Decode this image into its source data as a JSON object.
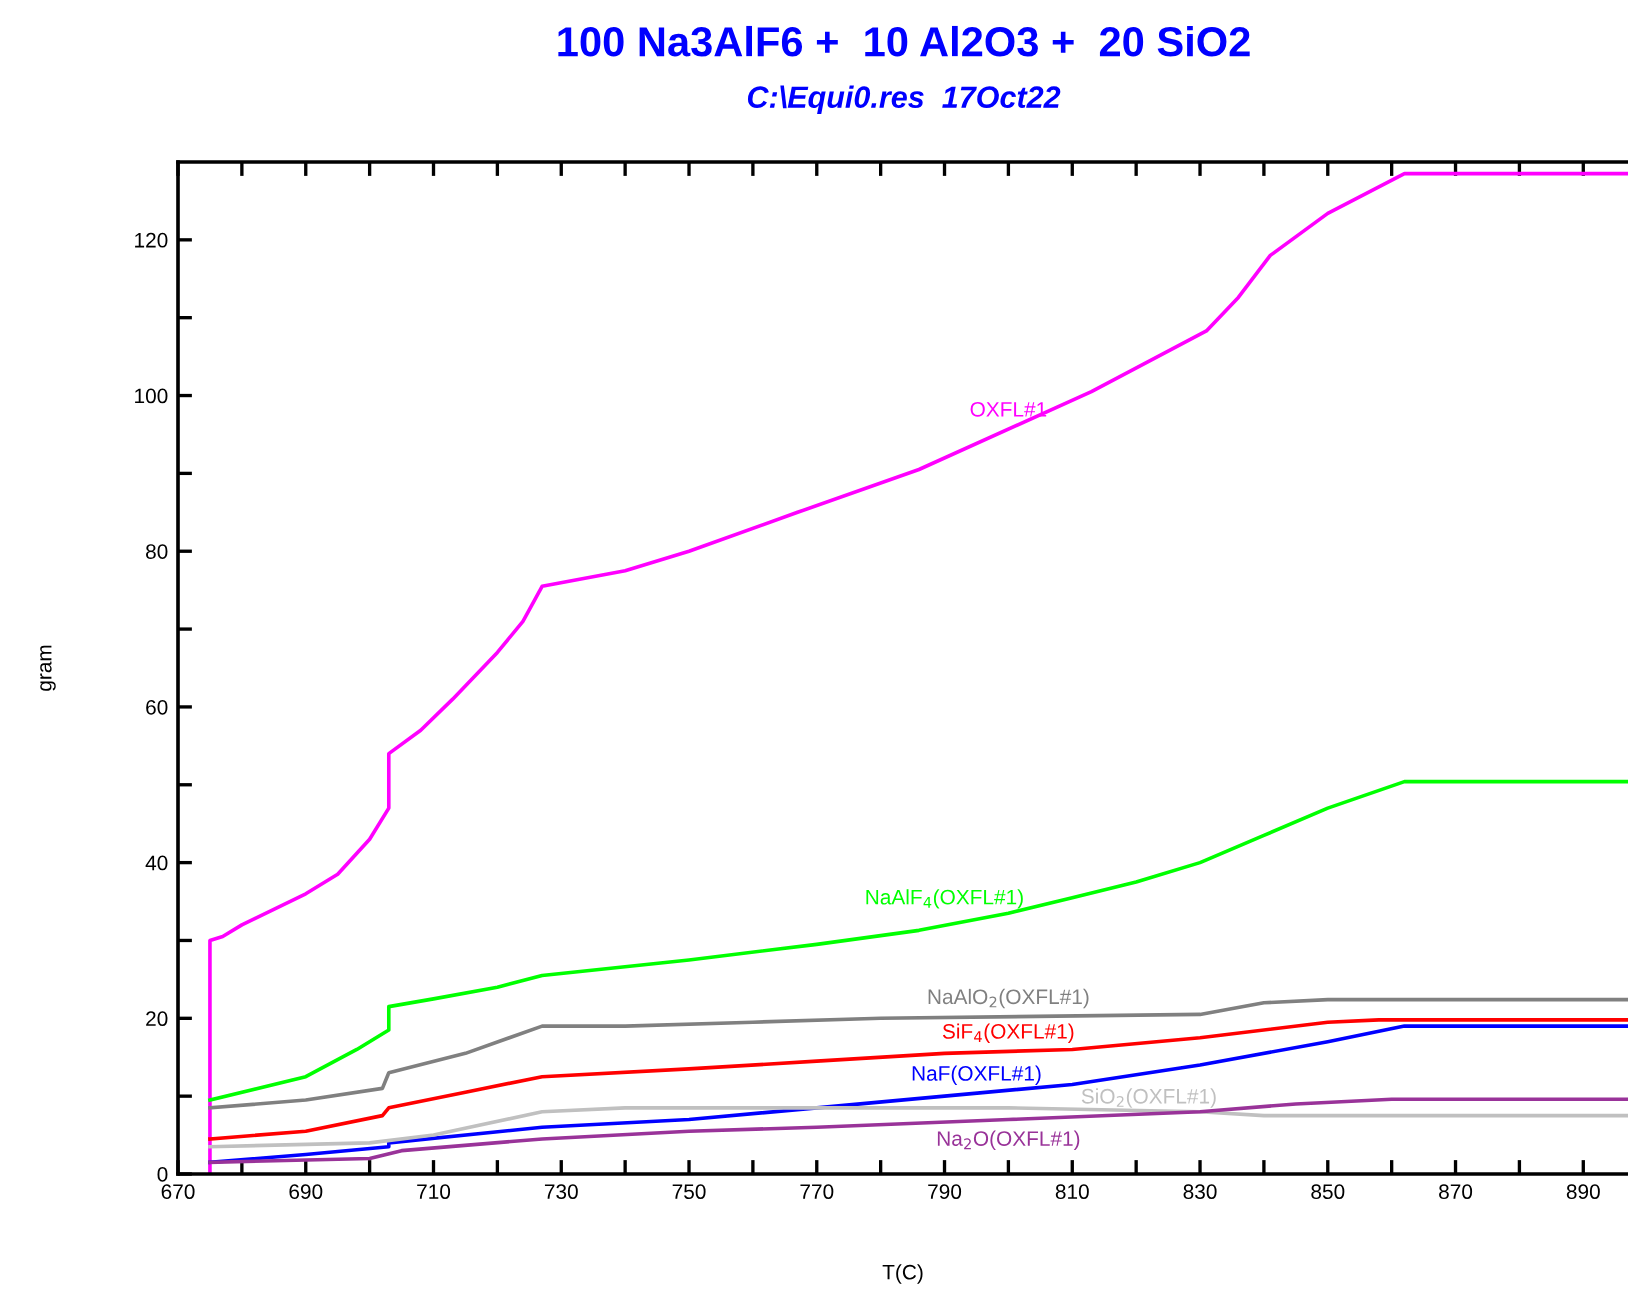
{
  "chart_data": {
    "type": "line",
    "title": "100 Na3AlF6 +  10 Al2O3 +  20 SiO2",
    "subtitle": "C:\\Equi0.res  17Oct22",
    "xlabel": "T(C)",
    "ylabel": "gram",
    "xlim": [
      670,
      897
    ],
    "ylim": [
      0,
      130
    ],
    "xticks": [
      670,
      {
        "value": 680,
        "label": null
      },
      690,
      {
        "value": 700,
        "label": null
      },
      710,
      {
        "value": 720,
        "label": null
      },
      730,
      {
        "value": 740,
        "label": null
      },
      750,
      {
        "value": 760,
        "label": null
      },
      770,
      {
        "value": 780,
        "label": null
      },
      790,
      {
        "value": 800,
        "label": null
      },
      810,
      {
        "value": 820,
        "label": null
      },
      830,
      {
        "value": 840,
        "label": null
      },
      850,
      {
        "value": 860,
        "label": null
      },
      870,
      {
        "value": 880,
        "label": null
      },
      890
    ],
    "yticks": [
      0,
      {
        "value": 10,
        "label": null
      },
      20,
      {
        "value": 30,
        "label": null
      },
      40,
      {
        "value": 50,
        "label": null
      },
      60,
      {
        "value": 70,
        "label": null
      },
      80,
      {
        "value": 90,
        "label": null
      },
      100,
      {
        "value": 110,
        "label": null
      },
      120
    ],
    "grid": false,
    "legend": false,
    "marker": "none",
    "line_style": "solid",
    "series": [
      {
        "name": "OXFL#1",
        "color": "#ff00ff",
        "x": [
          675,
          675,
          677,
          680,
          690,
          695,
          700,
          703,
          703,
          708,
          713,
          720,
          724,
          727,
          740,
          750,
          767,
          786,
          813,
          831,
          836,
          841,
          850,
          862,
          897
        ],
        "values": [
          0,
          30,
          30.5,
          32,
          36,
          38.5,
          43,
          47,
          54,
          57,
          61,
          67,
          71,
          75.5,
          77.5,
          80,
          85,
          90.5,
          100.5,
          108.3,
          112.6,
          118,
          123.4,
          128.5,
          128.5
        ]
      },
      {
        "name": "NaAlF$_{4}$(OXFL#1)",
        "color": "#00ff00",
        "x": [
          675,
          690,
          698,
          703,
          703,
          710,
          720,
          727,
          750,
          770,
          786,
          800,
          810,
          820,
          830,
          840,
          850,
          862,
          897
        ],
        "values": [
          9.5,
          12.5,
          16,
          18.5,
          21.5,
          22.5,
          24,
          25.5,
          27.5,
          29.5,
          31.3,
          33.5,
          35.5,
          37.5,
          40,
          43.5,
          47,
          50.4,
          50.4
        ]
      },
      {
        "name": "NaAlO$_{2}$(OXFL#1)",
        "color": "#808080",
        "x": [
          675,
          690,
          702,
          703,
          715,
          727,
          740,
          760,
          780,
          830,
          840,
          850,
          897
        ],
        "values": [
          8.5,
          9.5,
          11,
          13,
          15.5,
          19,
          19,
          19.5,
          20,
          20.5,
          22,
          22.4,
          22.4
        ]
      },
      {
        "name": "SiF$_{4}$(OXFL#1)",
        "color": "#ff0000",
        "x": [
          675,
          690,
          702,
          703,
          715,
          727,
          750,
          770,
          790,
          810,
          830,
          850,
          858,
          897
        ],
        "values": [
          4.5,
          5.5,
          7.5,
          8.5,
          10.5,
          12.5,
          13.5,
          14.5,
          15.5,
          16,
          17.5,
          19.5,
          19.8,
          19.8
        ]
      },
      {
        "name": "NaF(OXFL#1)",
        "color": "#0000ff",
        "x": [
          675,
          690,
          703,
          703,
          727,
          750,
          770,
          790,
          810,
          830,
          850,
          862,
          897
        ],
        "values": [
          1.5,
          2.5,
          3.5,
          4,
          6,
          7,
          8.5,
          10,
          11.5,
          14,
          17,
          19,
          19
        ]
      },
      {
        "name": "SiO$_{2}$(OXFL#1)",
        "color": "#c0c0c0",
        "x": [
          675,
          700,
          710,
          727,
          740,
          800,
          830,
          840,
          897
        ],
        "values": [
          3.5,
          4,
          5,
          8,
          8.5,
          8.5,
          8,
          7.5,
          7.5
        ]
      },
      {
        "name": "Na$_{2}$O(OXFL#1)",
        "color": "#993399",
        "x": [
          675,
          700,
          705,
          727,
          750,
          770,
          800,
          830,
          845,
          860,
          897
        ],
        "values": [
          1.5,
          2,
          3,
          4.5,
          5.5,
          6,
          7,
          8,
          9,
          9.6,
          9.6
        ]
      }
    ]
  }
}
